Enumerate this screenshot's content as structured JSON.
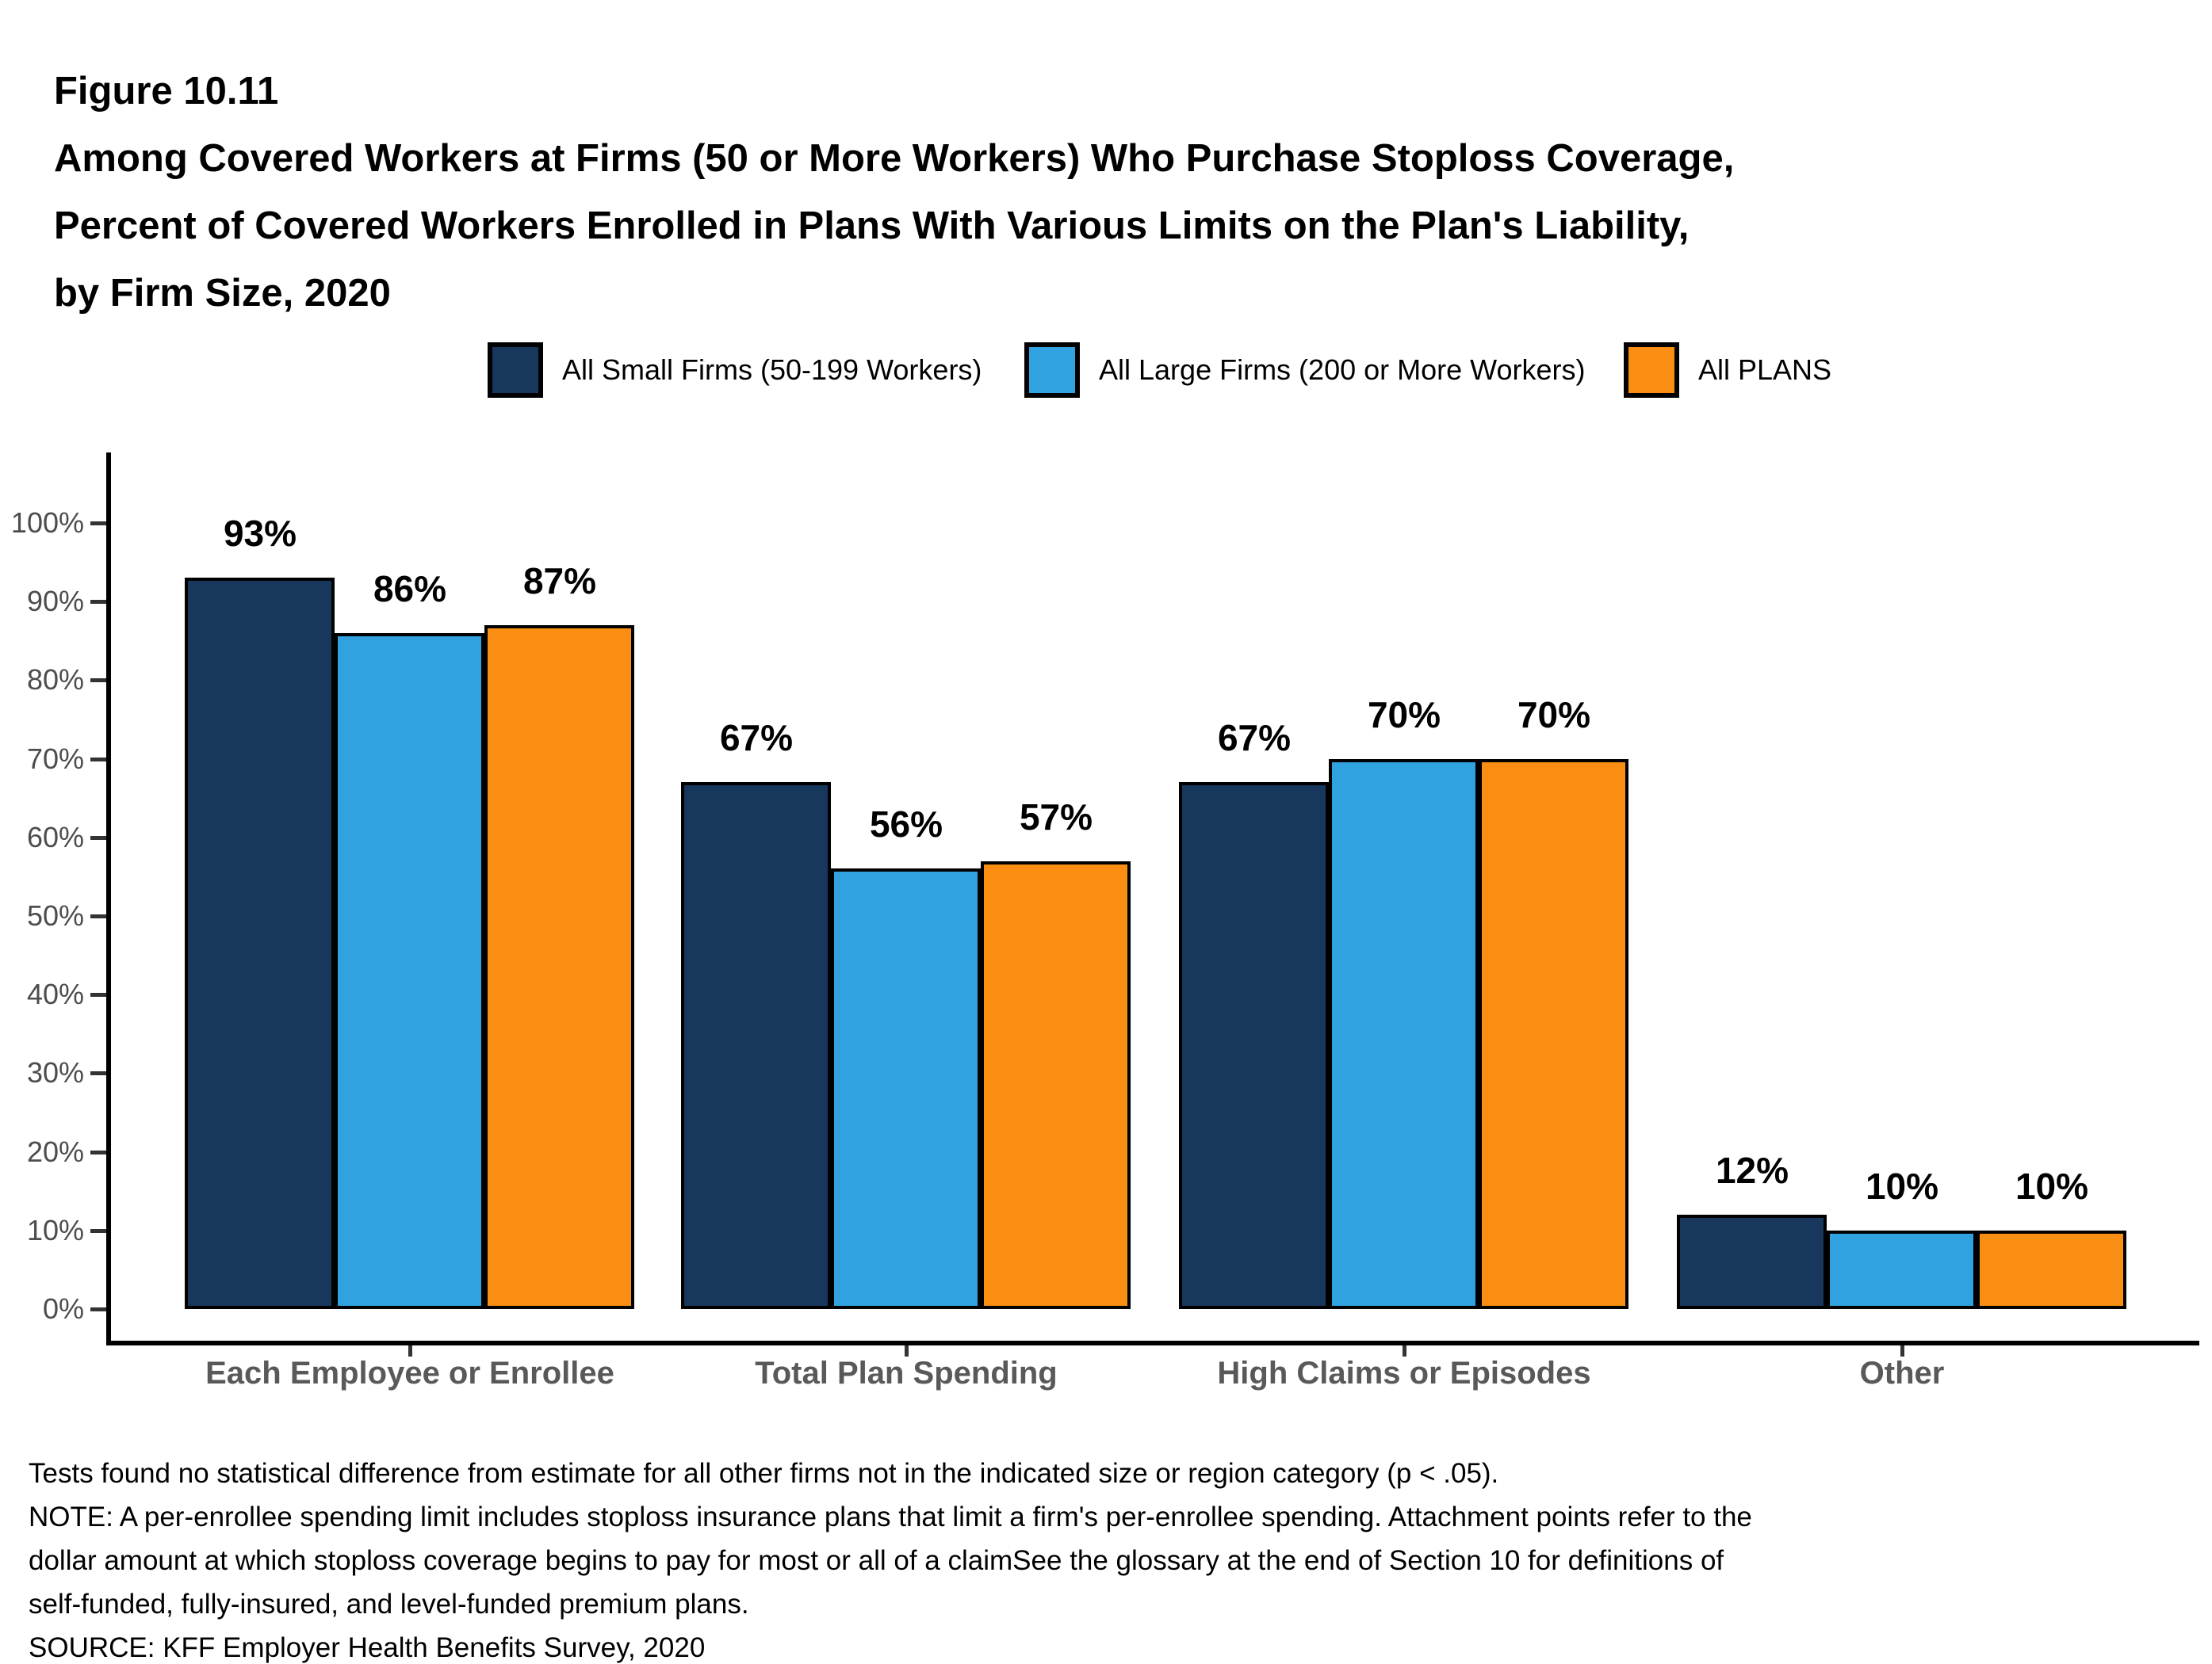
{
  "figure": {
    "label": "Figure 10.11",
    "title_lines": [
      "Among Covered Workers at Firms (50 or More Workers) Who Purchase Stoploss Coverage,",
      "Percent of Covered Workers Enrolled in Plans With Various Limits on the Plan's Liability,",
      "by Firm Size, 2020"
    ]
  },
  "legend": {
    "items": [
      {
        "label": "All Small Firms (50-199 Workers)",
        "color": "#17375C"
      },
      {
        "label": "All Large Firms (200 or More Workers)",
        "color": "#30A2DF"
      },
      {
        "label": "All PLANS",
        "color": "#F98E12"
      }
    ]
  },
  "chart_data": {
    "type": "bar",
    "title": "Figure 10.11 Among Covered Workers at Firms (50 or More Workers) Who Purchase Stoploss Coverage, Percent of Covered Workers Enrolled in Plans With Various Limits on the Plan's Liability, by Firm Size, 2020",
    "categories": [
      "Each Employee or Enrollee",
      "Total Plan Spending",
      "High Claims or Episodes",
      "Other"
    ],
    "series": [
      {
        "name": "All Small Firms (50-199 Workers)",
        "color": "#17375C",
        "values": [
          93,
          67,
          67,
          12
        ]
      },
      {
        "name": "All Large Firms (200 or More Workers)",
        "color": "#30A2DF",
        "values": [
          86,
          56,
          70,
          10
        ]
      },
      {
        "name": "All PLANS",
        "color": "#F98E12",
        "values": [
          87,
          57,
          70,
          10
        ]
      }
    ],
    "value_labels": [
      [
        "93%",
        "86%",
        "87%"
      ],
      [
        "67%",
        "56%",
        "57%"
      ],
      [
        "67%",
        "70%",
        "70%"
      ],
      [
        "12%",
        "10%",
        "10%"
      ]
    ],
    "yticks": [
      "0%",
      "10%",
      "20%",
      "30%",
      "40%",
      "50%",
      "60%",
      "70%",
      "80%",
      "90%",
      "100%"
    ],
    "ylim": [
      0,
      100
    ],
    "xlabel": "",
    "ylabel": "",
    "grid": false,
    "legend_position": "top",
    "bar_outline_color": "#000000"
  },
  "notes": {
    "lines": [
      "Tests found no statistical difference from estimate for all other firms not in the indicated size or region category (p < .05).",
      "NOTE: A per-enrollee spending limit includes stoploss insurance plans that limit a firm's per-enrollee spending. Attachment points refer to the",
      "dollar amount at which stoploss coverage begins to pay for most or all of a claimSee the glossary at the end of Section 10 for definitions of",
      "self-funded, fully-insured, and level-funded premium plans.",
      "SOURCE: KFF Employer Health Benefits Survey, 2020"
    ]
  },
  "colors": {
    "background": "#FFFFFF",
    "navy": "#17375C",
    "blue": "#30A2DF",
    "orange": "#F98E12",
    "axis_line": "#000000",
    "tick_label": "#4D4D4D",
    "category_label": "#595959",
    "value_label": "#000000"
  }
}
